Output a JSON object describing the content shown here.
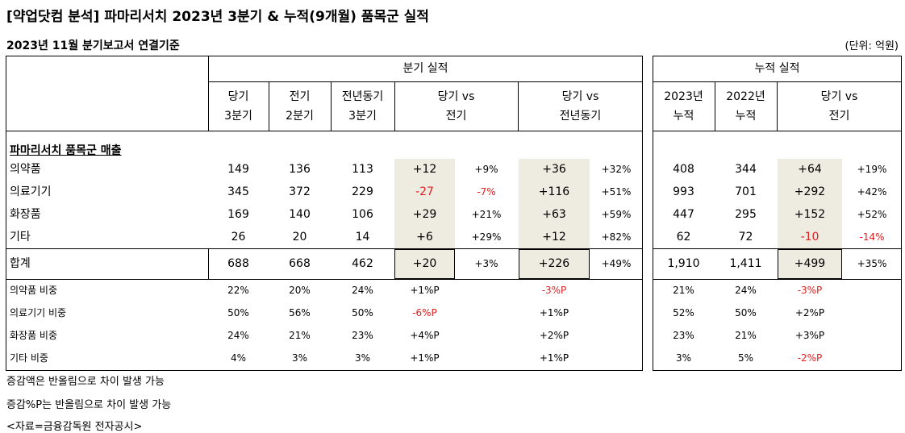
{
  "title": "[약업닷컴 분석] 파마리서치 2023년 3분기 & 누적(9개월) 품목군 실적",
  "subtitle": "2023년 11월 분기보고서 연결기준",
  "unit": "(단위: 억원)",
  "headers": {
    "quarter_group": "분기 실적",
    "cum_group": "누적 실적",
    "q_cur": [
      "당기",
      "3분기"
    ],
    "q_prev": [
      "전기",
      "2분기"
    ],
    "q_yoy": [
      "전년동기",
      "3분기"
    ],
    "q_vs_prev": [
      "당기 vs",
      "전기"
    ],
    "q_vs_yoy": [
      "당기 vs",
      "전년동기"
    ],
    "c_2023": [
      "2023년",
      "누적"
    ],
    "c_2022": [
      "2022년",
      "누적"
    ],
    "c_vs": [
      "당기 vs",
      "전기"
    ]
  },
  "section_label": "파마리서치 품목군 매출",
  "rows": [
    {
      "label": "의약품",
      "q_cur": "149",
      "q_prev": "136",
      "q_yoy": "113",
      "d_prev": "+12",
      "p_prev": "+9%",
      "d_yoy": "+36",
      "p_yoy": "+32%",
      "c23": "408",
      "c22": "344",
      "d_cum": "+64",
      "p_cum": "+19%"
    },
    {
      "label": "의료기기",
      "q_cur": "345",
      "q_prev": "372",
      "q_yoy": "229",
      "d_prev": "-27",
      "p_prev": "-7%",
      "d_yoy": "+116",
      "p_yoy": "+51%",
      "c23": "993",
      "c22": "701",
      "d_cum": "+292",
      "p_cum": "+42%"
    },
    {
      "label": "화장품",
      "q_cur": "169",
      "q_prev": "140",
      "q_yoy": "106",
      "d_prev": "+29",
      "p_prev": "+21%",
      "d_yoy": "+63",
      "p_yoy": "+59%",
      "c23": "447",
      "c22": "295",
      "d_cum": "+152",
      "p_cum": "+52%"
    },
    {
      "label": "기타",
      "q_cur": "26",
      "q_prev": "20",
      "q_yoy": "14",
      "d_prev": "+6",
      "p_prev": "+29%",
      "d_yoy": "+12",
      "p_yoy": "+82%",
      "c23": "62",
      "c22": "72",
      "d_cum": "-10",
      "p_cum": "-14%"
    }
  ],
  "total": {
    "label": "합계",
    "q_cur": "688",
    "q_prev": "668",
    "q_yoy": "462",
    "d_prev": "+20",
    "p_prev": "+3%",
    "d_yoy": "+226",
    "p_yoy": "+49%",
    "c23": "1,910",
    "c22": "1,411",
    "d_cum": "+499",
    "p_cum": "+35%"
  },
  "ratios": [
    {
      "label": "의약품 비중",
      "q_cur": "22%",
      "q_prev": "20%",
      "q_yoy": "24%",
      "vs_prev": "+1%P",
      "vs_yoy": "-3%P",
      "c23": "21%",
      "c22": "24%",
      "vs_cum": "-3%P"
    },
    {
      "label": "의료기기 비중",
      "q_cur": "50%",
      "q_prev": "56%",
      "q_yoy": "50%",
      "vs_prev": "-6%P",
      "vs_yoy": "+1%P",
      "c23": "52%",
      "c22": "50%",
      "vs_cum": "+2%P"
    },
    {
      "label": "화장품 비중",
      "q_cur": "24%",
      "q_prev": "21%",
      "q_yoy": "23%",
      "vs_prev": "+4%P",
      "vs_yoy": "+2%P",
      "c23": "23%",
      "c22": "21%",
      "vs_cum": "+3%P"
    },
    {
      "label": "기타 비중",
      "q_cur": "4%",
      "q_prev": "3%",
      "q_yoy": "3%",
      "vs_prev": "+1%P",
      "vs_yoy": "+1%P",
      "c23": "3%",
      "c22": "5%",
      "vs_cum": "-2%P"
    }
  ],
  "notes": [
    "증감액은 반올림으로 차이 발생 가능",
    "증감%P는 반올림으로 차이 발생 가능",
    "<자료=금융감독원 전자공시>"
  ],
  "colors": {
    "negative": "#e02020",
    "shade": "#eeebe0"
  }
}
